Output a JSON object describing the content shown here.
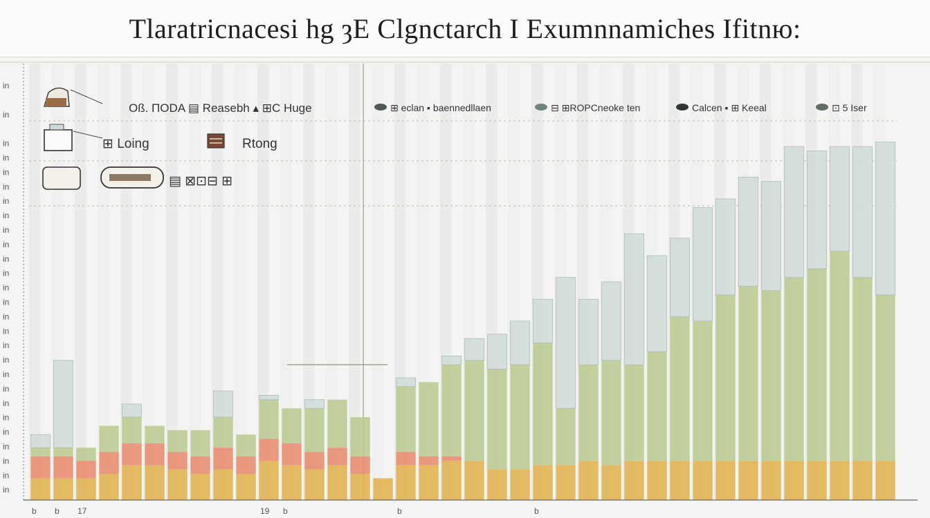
{
  "page": {
    "title": "Tlaratricnacesi hg ȝE Clgnctarch I Exumnnamiches Ifitnю:"
  },
  "chart_data": {
    "type": "bar",
    "stacked": true,
    "title": "Tlaratricnacesi hg ȝE Clgnctarch I Exumnnamiches Ifitnю:",
    "xlabel": "",
    "ylabel": "",
    "ylim": [
      0,
      100
    ],
    "grid": true,
    "legend_position": "top",
    "legend_left": [
      {
        "label": "Oß. ПОDA ▤ Reasebh ▴ ⊞C Huge",
        "icon": "box-icon"
      },
      {
        "label": "⊞ Loing",
        "icon": "monitor-icon"
      },
      {
        "label": "Rtong",
        "icon": "crate-icon"
      },
      {
        "label": "▤ ⊠⊡⊟ ⊞",
        "icon": "capsule-icon"
      }
    ],
    "legend_right": [
      {
        "label": "⊞ eclan ▪ baennedllaen",
        "color": "#4f5a55"
      },
      {
        "label": "⊟ ⊞ROPCneoke ten",
        "color": "#6f8580"
      },
      {
        "label": "Calcen ▪ ⊞ Keeal",
        "color": "#2f3633"
      },
      {
        "label": "⊡ 5 Iser",
        "color": "#5f6d61"
      }
    ],
    "x_tick_labels": [
      "b",
      "b",
      "17",
      "",
      "",
      "",
      "",
      "",
      "",
      "",
      "19",
      "b",
      "",
      "",
      "",
      "",
      "b",
      "",
      "",
      "",
      "",
      "",
      "b",
      "",
      "",
      "",
      "",
      "",
      "",
      "",
      "",
      "",
      "",
      "",
      "",
      "",
      ""
    ],
    "y_tick_labels": [
      "in",
      "",
      "in",
      "",
      "in",
      "in",
      "in",
      "in",
      "in",
      "in",
      "in",
      "in",
      "in",
      "in",
      "in",
      "in",
      "in",
      "in",
      "in",
      "in",
      "in",
      "in",
      "in",
      "in",
      "in",
      "in",
      "in",
      "in",
      "in"
    ],
    "series": [
      {
        "color": "#e0b04a",
        "values": [
          5,
          5,
          5,
          6,
          8,
          8,
          7,
          6,
          7,
          6,
          9,
          8,
          7,
          8,
          6,
          5,
          8,
          8,
          9,
          9,
          7,
          7,
          8,
          8,
          9,
          8,
          9,
          9,
          9,
          9,
          9,
          9,
          9,
          9,
          9,
          9,
          9,
          9
        ]
      },
      {
        "color": "#e7876b",
        "values": [
          5,
          5,
          4,
          5,
          5,
          5,
          4,
          4,
          5,
          4,
          5,
          5,
          4,
          4,
          4,
          0,
          3,
          2,
          1,
          0,
          0,
          0,
          0,
          0,
          0,
          0,
          0,
          0,
          0,
          0,
          0,
          0,
          0,
          0,
          0,
          0,
          0,
          0
        ]
      },
      {
        "color": "#b8c98e",
        "values": [
          2,
          2,
          3,
          6,
          6,
          4,
          5,
          6,
          7,
          5,
          9,
          8,
          10,
          11,
          9,
          0,
          15,
          17,
          21,
          23,
          23,
          24,
          28,
          13,
          22,
          24,
          22,
          25,
          33,
          32,
          38,
          40,
          39,
          42,
          44,
          48,
          42,
          38
        ]
      },
      {
        "color": "#cfdcd9",
        "values": [
          3,
          20,
          0,
          0,
          3,
          0,
          0,
          0,
          6,
          0,
          1,
          0,
          2,
          0,
          0,
          0,
          2,
          0,
          2,
          5,
          8,
          10,
          10,
          30,
          15,
          18,
          30,
          22,
          18,
          26,
          22,
          25,
          25,
          30,
          27,
          24,
          30,
          35
        ]
      }
    ]
  }
}
